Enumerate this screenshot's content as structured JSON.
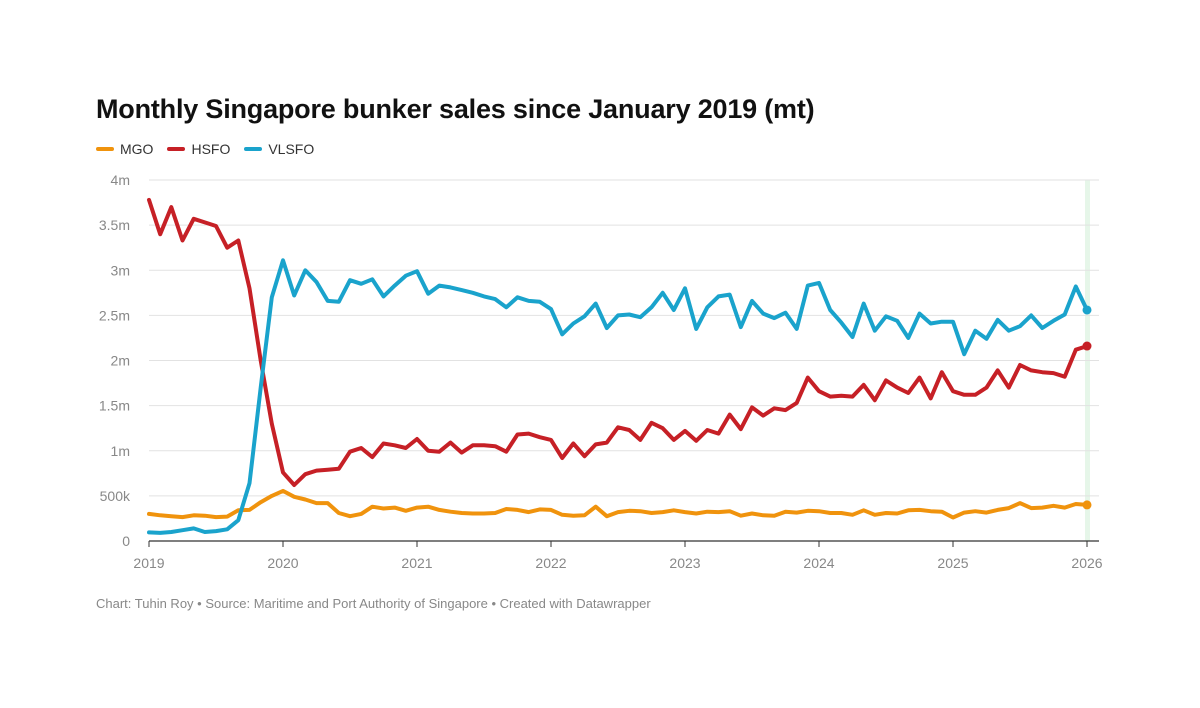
{
  "title": "Monthly Singapore bunker sales since January 2019 (mt)",
  "source": "Chart: Tuhin Roy • Source: Maritime and Port Authority of Singapore • Created with Datawrapper",
  "legend": [
    {
      "name": "MGO",
      "color": "#f0930d"
    },
    {
      "name": "HSFO",
      "color": "#c62026"
    },
    {
      "name": "VLSFO",
      "color": "#1aa3cc"
    }
  ],
  "chart_data": {
    "type": "line",
    "title": "Monthly Singapore bunker sales since January 2019 (mt)",
    "xlabel": "",
    "ylabel": "",
    "x_start": "2019-01",
    "x_step": "month",
    "xlim": [
      2019,
      2026
    ],
    "ylim": [
      0,
      4000000
    ],
    "yticks": [
      {
        "value": 0,
        "label": "0"
      },
      {
        "value": 500000,
        "label": "500k"
      },
      {
        "value": 1000000,
        "label": "1m"
      },
      {
        "value": 1500000,
        "label": "1.5m"
      },
      {
        "value": 2000000,
        "label": "2m"
      },
      {
        "value": 2500000,
        "label": "2.5m"
      },
      {
        "value": 3000000,
        "label": "3m"
      },
      {
        "value": 3500000,
        "label": "3.5m"
      },
      {
        "value": 4000000,
        "label": "4m"
      }
    ],
    "xticks": [
      {
        "value": 2019,
        "label": "2019"
      },
      {
        "value": 2020,
        "label": "2020"
      },
      {
        "value": 2021,
        "label": "2021"
      },
      {
        "value": 2022,
        "label": "2022"
      },
      {
        "value": 2023,
        "label": "2023"
      },
      {
        "value": 2024,
        "label": "2024"
      },
      {
        "value": 2025,
        "label": "2025"
      },
      {
        "value": 2026,
        "label": "2026"
      }
    ],
    "grid": true,
    "series": [
      {
        "name": "MGO",
        "color": "#f0930d",
        "values": [
          300000,
          285000,
          275000,
          265000,
          285000,
          280000,
          265000,
          270000,
          340000,
          345000,
          430000,
          500000,
          555000,
          490000,
          460000,
          420000,
          420000,
          310000,
          275000,
          300000,
          380000,
          360000,
          370000,
          335000,
          370000,
          380000,
          345000,
          325000,
          310000,
          305000,
          305000,
          310000,
          355000,
          345000,
          320000,
          350000,
          345000,
          290000,
          280000,
          285000,
          380000,
          275000,
          320000,
          335000,
          330000,
          310000,
          320000,
          340000,
          320000,
          305000,
          325000,
          320000,
          330000,
          280000,
          305000,
          285000,
          280000,
          325000,
          315000,
          335000,
          330000,
          310000,
          310000,
          290000,
          340000,
          290000,
          310000,
          305000,
          340000,
          345000,
          330000,
          325000,
          260000,
          315000,
          330000,
          315000,
          345000,
          365000,
          420000,
          365000,
          370000,
          390000,
          370000,
          410000,
          400000
        ]
      },
      {
        "name": "HSFO",
        "color": "#c62026",
        "values": [
          3780000,
          3400000,
          3700000,
          3330000,
          3570000,
          3530000,
          3490000,
          3250000,
          3330000,
          2800000,
          2000000,
          1300000,
          760000,
          620000,
          740000,
          780000,
          790000,
          800000,
          990000,
          1030000,
          930000,
          1080000,
          1060000,
          1030000,
          1130000,
          1000000,
          990000,
          1090000,
          980000,
          1060000,
          1060000,
          1050000,
          990000,
          1180000,
          1190000,
          1150000,
          1120000,
          920000,
          1080000,
          940000,
          1070000,
          1090000,
          1260000,
          1230000,
          1120000,
          1310000,
          1250000,
          1120000,
          1220000,
          1110000,
          1230000,
          1190000,
          1400000,
          1240000,
          1480000,
          1390000,
          1470000,
          1450000,
          1530000,
          1810000,
          1660000,
          1600000,
          1610000,
          1600000,
          1730000,
          1560000,
          1780000,
          1700000,
          1640000,
          1810000,
          1580000,
          1870000,
          1660000,
          1620000,
          1620000,
          1700000,
          1890000,
          1700000,
          1950000,
          1890000,
          1870000,
          1860000,
          1820000,
          2120000,
          2160000
        ]
      },
      {
        "name": "VLSFO",
        "color": "#1aa3cc",
        "values": [
          95000,
          90000,
          100000,
          120000,
          140000,
          100000,
          110000,
          130000,
          230000,
          640000,
          1700000,
          2700000,
          3110000,
          2720000,
          3000000,
          2870000,
          2660000,
          2650000,
          2890000,
          2850000,
          2900000,
          2710000,
          2830000,
          2940000,
          2990000,
          2740000,
          2830000,
          2810000,
          2780000,
          2750000,
          2710000,
          2680000,
          2590000,
          2700000,
          2660000,
          2650000,
          2570000,
          2290000,
          2410000,
          2490000,
          2630000,
          2360000,
          2500000,
          2510000,
          2480000,
          2590000,
          2750000,
          2560000,
          2800000,
          2350000,
          2590000,
          2710000,
          2730000,
          2370000,
          2660000,
          2520000,
          2470000,
          2530000,
          2350000,
          2830000,
          2860000,
          2560000,
          2420000,
          2260000,
          2630000,
          2330000,
          2490000,
          2440000,
          2250000,
          2520000,
          2410000,
          2430000,
          2430000,
          2070000,
          2330000,
          2240000,
          2450000,
          2330000,
          2380000,
          2500000,
          2360000,
          2440000,
          2510000,
          2820000,
          2560000
        ]
      }
    ]
  }
}
